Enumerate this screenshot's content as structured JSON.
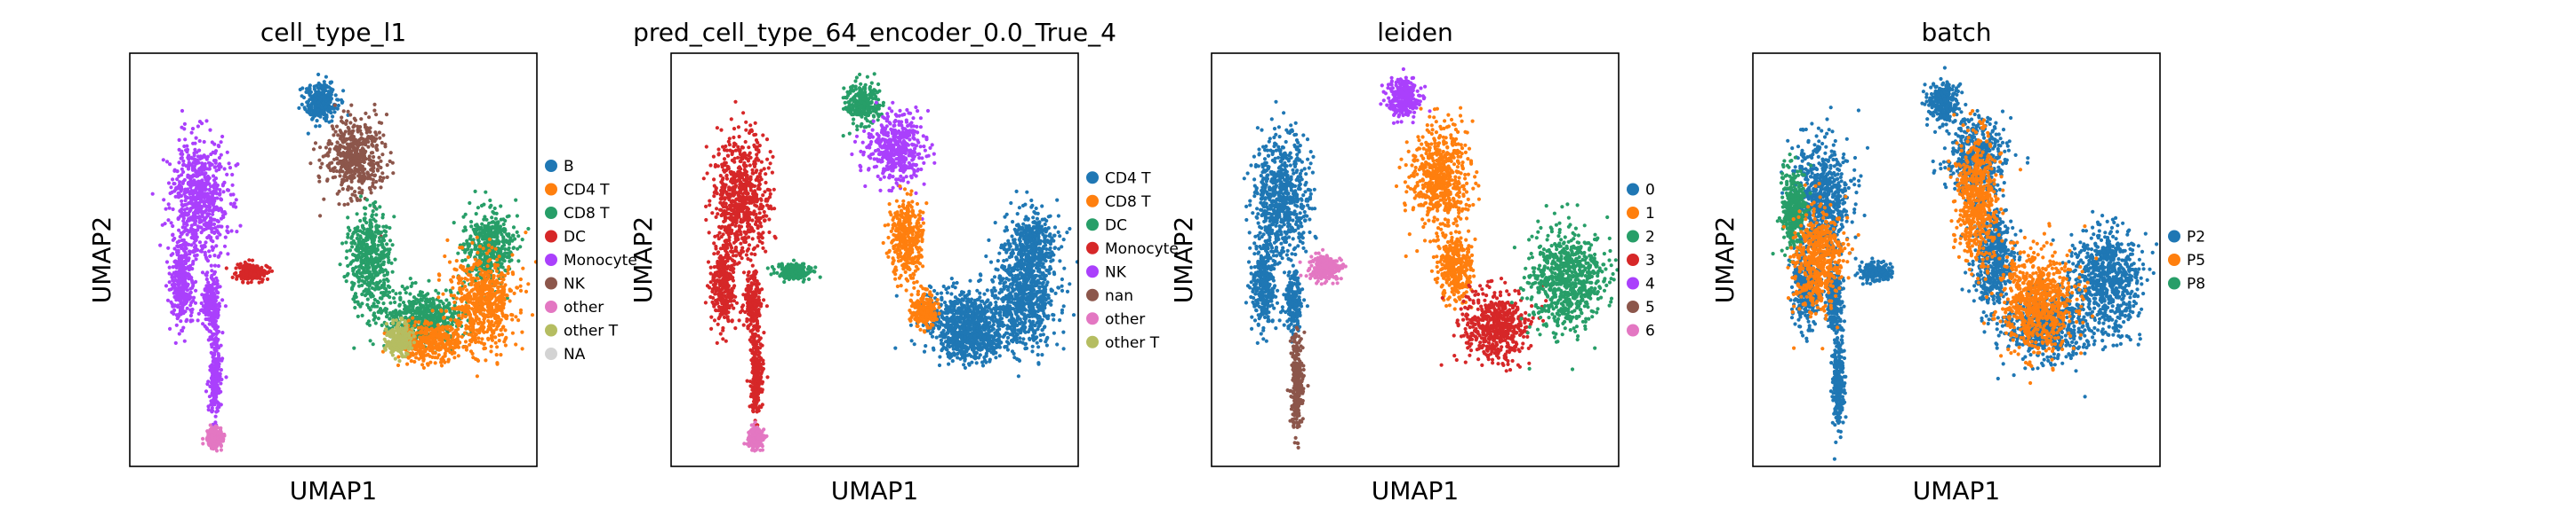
{
  "chart_data": [
    {
      "type": "scatter",
      "title": "cell_type_l1",
      "xlabel": "UMAP1",
      "ylabel": "UMAP2",
      "grid": false,
      "legend": {
        "placement": "right",
        "entries": [
          {
            "label": "B",
            "color": "#1f77b4"
          },
          {
            "label": "CD4 T",
            "color": "#ff7f0e"
          },
          {
            "label": "CD8 T",
            "color": "#279e68"
          },
          {
            "label": "DC",
            "color": "#d62728"
          },
          {
            "label": "Monocyte",
            "color": "#aa40fc"
          },
          {
            "label": "NK",
            "color": "#8c564b"
          },
          {
            "label": "other",
            "color": "#e377c2"
          },
          {
            "label": "other T",
            "color": "#b5bd61"
          },
          {
            "label": "NA",
            "color": "#d3d3d3"
          }
        ]
      },
      "clusters": [
        {
          "cx": 0.17,
          "cy": 0.35,
          "rx": 0.07,
          "ry": 0.14,
          "color": "#aa40fc"
        },
        {
          "cx": 0.13,
          "cy": 0.56,
          "rx": 0.03,
          "ry": 0.1,
          "color": "#aa40fc"
        },
        {
          "cx": 0.2,
          "cy": 0.6,
          "rx": 0.02,
          "ry": 0.07,
          "color": "#aa40fc"
        },
        {
          "cx": 0.21,
          "cy": 0.78,
          "rx": 0.015,
          "ry": 0.1,
          "color": "#aa40fc"
        },
        {
          "cx": 0.21,
          "cy": 0.93,
          "rx": 0.02,
          "ry": 0.025,
          "color": "#e377c2"
        },
        {
          "cx": 0.3,
          "cy": 0.53,
          "rx": 0.04,
          "ry": 0.02,
          "color": "#d62728"
        },
        {
          "cx": 0.47,
          "cy": 0.12,
          "rx": 0.04,
          "ry": 0.05,
          "color": "#1f77b4"
        },
        {
          "cx": 0.55,
          "cy": 0.25,
          "rx": 0.07,
          "ry": 0.09,
          "color": "#8c564b"
        },
        {
          "cx": 0.59,
          "cy": 0.5,
          "rx": 0.05,
          "ry": 0.12,
          "color": "#279e68"
        },
        {
          "cx": 0.72,
          "cy": 0.64,
          "rx": 0.1,
          "ry": 0.07,
          "color": "#279e68"
        },
        {
          "cx": 0.88,
          "cy": 0.47,
          "rx": 0.06,
          "ry": 0.09,
          "color": "#279e68"
        },
        {
          "cx": 0.74,
          "cy": 0.7,
          "rx": 0.08,
          "ry": 0.05,
          "color": "#ff7f0e"
        },
        {
          "cx": 0.87,
          "cy": 0.6,
          "rx": 0.08,
          "ry": 0.11,
          "color": "#ff7f0e"
        },
        {
          "cx": 0.66,
          "cy": 0.69,
          "rx": 0.03,
          "ry": 0.04,
          "color": "#b5bd61"
        }
      ]
    },
    {
      "type": "scatter",
      "title": "pred_cell_type_64_encoder_0.0_True_4",
      "xlabel": "UMAP1",
      "ylabel": "UMAP2",
      "grid": false,
      "legend": {
        "placement": "right",
        "entries": [
          {
            "label": "CD4 T",
            "color": "#1f77b4"
          },
          {
            "label": "CD8 T",
            "color": "#ff7f0e"
          },
          {
            "label": "DC",
            "color": "#279e68"
          },
          {
            "label": "Monocyte",
            "color": "#d62728"
          },
          {
            "label": "NK",
            "color": "#aa40fc"
          },
          {
            "label": "nan",
            "color": "#8c564b"
          },
          {
            "label": "other",
            "color": "#e377c2"
          },
          {
            "label": "other T",
            "color": "#b5bd61"
          }
        ]
      },
      "clusters": [
        {
          "cx": 0.17,
          "cy": 0.35,
          "rx": 0.07,
          "ry": 0.14,
          "color": "#d62728"
        },
        {
          "cx": 0.13,
          "cy": 0.56,
          "rx": 0.03,
          "ry": 0.1,
          "color": "#d62728"
        },
        {
          "cx": 0.2,
          "cy": 0.6,
          "rx": 0.02,
          "ry": 0.07,
          "color": "#d62728"
        },
        {
          "cx": 0.21,
          "cy": 0.78,
          "rx": 0.015,
          "ry": 0.1,
          "color": "#d62728"
        },
        {
          "cx": 0.21,
          "cy": 0.93,
          "rx": 0.02,
          "ry": 0.025,
          "color": "#e377c2"
        },
        {
          "cx": 0.3,
          "cy": 0.53,
          "rx": 0.04,
          "ry": 0.02,
          "color": "#279e68"
        },
        {
          "cx": 0.47,
          "cy": 0.12,
          "rx": 0.04,
          "ry": 0.05,
          "color": "#279e68"
        },
        {
          "cx": 0.55,
          "cy": 0.23,
          "rx": 0.07,
          "ry": 0.08,
          "color": "#aa40fc"
        },
        {
          "cx": 0.58,
          "cy": 0.45,
          "rx": 0.04,
          "ry": 0.1,
          "color": "#ff7f0e"
        },
        {
          "cx": 0.72,
          "cy": 0.64,
          "rx": 0.1,
          "ry": 0.07,
          "color": "#1f77b4"
        },
        {
          "cx": 0.88,
          "cy": 0.47,
          "rx": 0.06,
          "ry": 0.09,
          "color": "#1f77b4"
        },
        {
          "cx": 0.74,
          "cy": 0.7,
          "rx": 0.08,
          "ry": 0.05,
          "color": "#1f77b4"
        },
        {
          "cx": 0.87,
          "cy": 0.6,
          "rx": 0.08,
          "ry": 0.11,
          "color": "#1f77b4"
        },
        {
          "cx": 0.62,
          "cy": 0.62,
          "rx": 0.03,
          "ry": 0.04,
          "color": "#ff7f0e"
        }
      ]
    },
    {
      "type": "scatter",
      "title": "leiden",
      "xlabel": "UMAP1",
      "ylabel": "UMAP2",
      "grid": false,
      "legend": {
        "placement": "right",
        "entries": [
          {
            "label": "0",
            "color": "#1f77b4"
          },
          {
            "label": "1",
            "color": "#ff7f0e"
          },
          {
            "label": "2",
            "color": "#279e68"
          },
          {
            "label": "3",
            "color": "#d62728"
          },
          {
            "label": "4",
            "color": "#aa40fc"
          },
          {
            "label": "5",
            "color": "#8c564b"
          },
          {
            "label": "6",
            "color": "#e377c2"
          }
        ]
      },
      "clusters": [
        {
          "cx": 0.17,
          "cy": 0.35,
          "rx": 0.07,
          "ry": 0.14,
          "color": "#1f77b4"
        },
        {
          "cx": 0.13,
          "cy": 0.56,
          "rx": 0.03,
          "ry": 0.1,
          "color": "#1f77b4"
        },
        {
          "cx": 0.2,
          "cy": 0.6,
          "rx": 0.02,
          "ry": 0.07,
          "color": "#1f77b4"
        },
        {
          "cx": 0.21,
          "cy": 0.8,
          "rx": 0.015,
          "ry": 0.12,
          "color": "#8c564b"
        },
        {
          "cx": 0.28,
          "cy": 0.52,
          "rx": 0.04,
          "ry": 0.03,
          "color": "#e377c2"
        },
        {
          "cx": 0.47,
          "cy": 0.11,
          "rx": 0.04,
          "ry": 0.05,
          "color": "#aa40fc"
        },
        {
          "cx": 0.56,
          "cy": 0.3,
          "rx": 0.07,
          "ry": 0.12,
          "color": "#ff7f0e"
        },
        {
          "cx": 0.6,
          "cy": 0.52,
          "rx": 0.04,
          "ry": 0.08,
          "color": "#ff7f0e"
        },
        {
          "cx": 0.7,
          "cy": 0.66,
          "rx": 0.08,
          "ry": 0.09,
          "color": "#d62728"
        },
        {
          "cx": 0.87,
          "cy": 0.55,
          "rx": 0.09,
          "ry": 0.12,
          "color": "#279e68"
        }
      ]
    },
    {
      "type": "scatter",
      "title": "batch",
      "xlabel": "UMAP1",
      "ylabel": "UMAP2",
      "grid": false,
      "legend": {
        "placement": "right",
        "entries": [
          {
            "label": "P2",
            "color": "#1f77b4"
          },
          {
            "label": "P5",
            "color": "#ff7f0e"
          },
          {
            "label": "P8",
            "color": "#279e68"
          }
        ]
      },
      "clusters": [
        {
          "cx": 0.17,
          "cy": 0.35,
          "rx": 0.07,
          "ry": 0.14,
          "color": "#1f77b4"
        },
        {
          "cx": 0.13,
          "cy": 0.56,
          "rx": 0.03,
          "ry": 0.1,
          "color": "#1f77b4"
        },
        {
          "cx": 0.2,
          "cy": 0.6,
          "rx": 0.02,
          "ry": 0.07,
          "color": "#1f77b4"
        },
        {
          "cx": 0.21,
          "cy": 0.8,
          "rx": 0.015,
          "ry": 0.12,
          "color": "#1f77b4"
        },
        {
          "cx": 0.3,
          "cy": 0.53,
          "rx": 0.04,
          "ry": 0.02,
          "color": "#1f77b4"
        },
        {
          "cx": 0.47,
          "cy": 0.12,
          "rx": 0.04,
          "ry": 0.05,
          "color": "#1f77b4"
        },
        {
          "cx": 0.55,
          "cy": 0.25,
          "rx": 0.07,
          "ry": 0.09,
          "color": "#1f77b4"
        },
        {
          "cx": 0.59,
          "cy": 0.5,
          "rx": 0.05,
          "ry": 0.12,
          "color": "#1f77b4"
        },
        {
          "cx": 0.72,
          "cy": 0.66,
          "rx": 0.1,
          "ry": 0.08,
          "color": "#1f77b4"
        },
        {
          "cx": 0.87,
          "cy": 0.55,
          "rx": 0.08,
          "ry": 0.13,
          "color": "#1f77b4"
        },
        {
          "cx": 0.1,
          "cy": 0.38,
          "rx": 0.03,
          "ry": 0.1,
          "color": "#279e68"
        },
        {
          "cx": 0.16,
          "cy": 0.5,
          "rx": 0.06,
          "ry": 0.12,
          "color": "#ff7f0e"
        },
        {
          "cx": 0.7,
          "cy": 0.6,
          "rx": 0.09,
          "ry": 0.12,
          "color": "#ff7f0e"
        },
        {
          "cx": 0.55,
          "cy": 0.35,
          "rx": 0.05,
          "ry": 0.15,
          "color": "#ff7f0e"
        }
      ]
    }
  ]
}
